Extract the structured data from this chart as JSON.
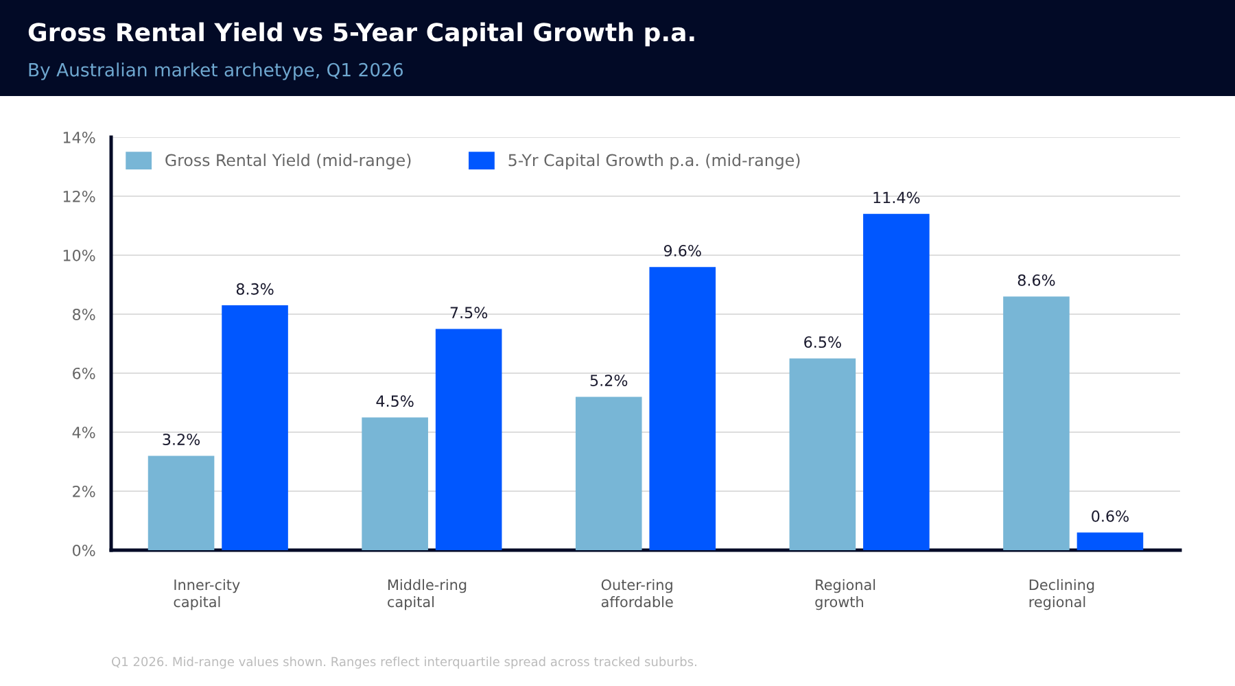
{
  "chart_data": {
    "type": "bar",
    "title": "Gross Rental Yield vs 5-Year Capital Growth p.a.",
    "subtitle": "By Australian market archetype, Q1 2026",
    "categories": [
      "Inner-city\ncapital",
      "Middle-ring\ncapital",
      "Outer-ring\naffordable",
      "Regional\ngrowth",
      "Declining\nregional"
    ],
    "series": [
      {
        "name": "Gross Rental Yield (mid-range)",
        "color": "#78b6d6",
        "values": [
          3.2,
          4.5,
          5.2,
          6.5,
          8.6
        ],
        "value_labels": [
          "3.2%",
          "4.5%",
          "5.2%",
          "6.5%",
          "8.6%"
        ]
      },
      {
        "name": "5-Yr Capital Growth p.a. (mid-range)",
        "color": "#0057ff",
        "values": [
          8.3,
          7.5,
          9.6,
          11.4,
          0.6
        ],
        "value_labels": [
          "8.3%",
          "7.5%",
          "9.6%",
          "11.4%",
          "0.6%"
        ]
      }
    ],
    "ylim": [
      0,
      14
    ],
    "yticks": [
      {
        "value": 0,
        "label": "0%"
      },
      {
        "value": 2,
        "label": "2%"
      },
      {
        "value": 4,
        "label": "4%"
      },
      {
        "value": 6,
        "label": "6%"
      },
      {
        "value": 8,
        "label": "8%"
      },
      {
        "value": 10,
        "label": "10%"
      },
      {
        "value": 12,
        "label": "12%"
      },
      {
        "value": 14,
        "label": "14%"
      }
    ],
    "grid": "y",
    "legend": "top left",
    "annotations": [
      "Q1 2026. Mid-range values shown. Ranges reflect interquartile spread across tracked suburbs."
    ]
  }
}
